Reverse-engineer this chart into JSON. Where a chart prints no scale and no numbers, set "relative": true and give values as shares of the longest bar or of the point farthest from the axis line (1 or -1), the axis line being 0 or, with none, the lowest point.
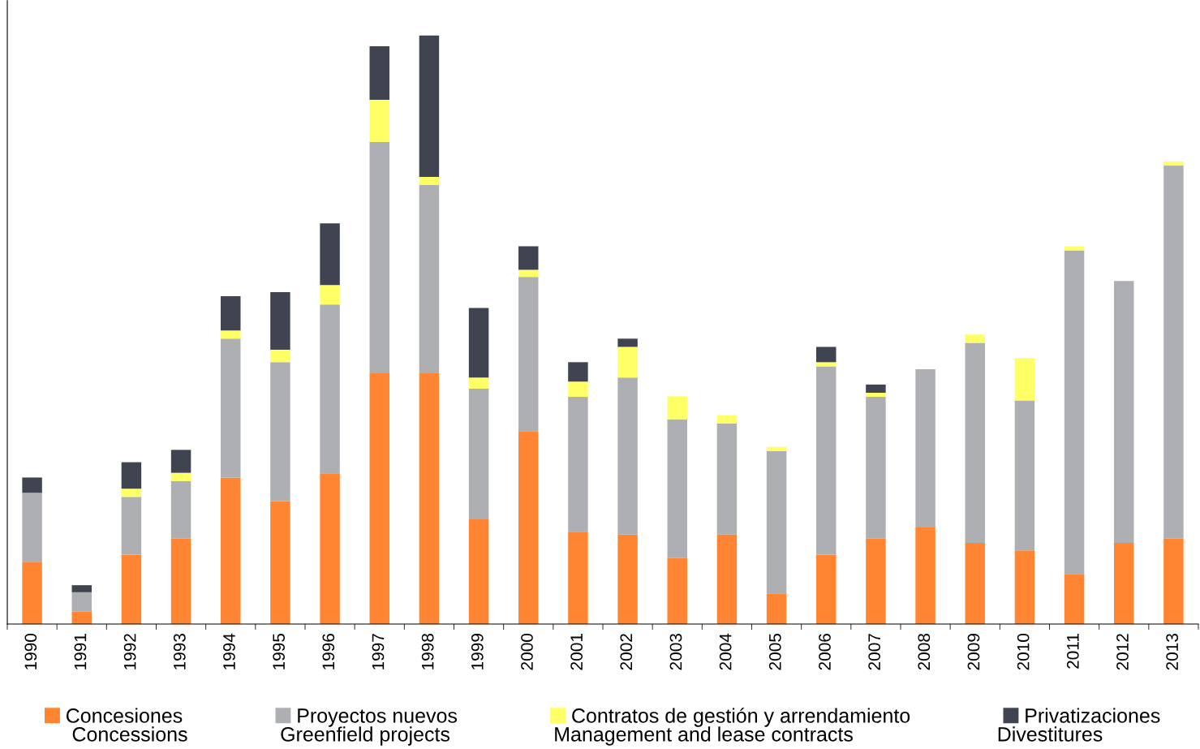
{
  "chart_data": {
    "type": "bar",
    "stacked": true,
    "relative": true,
    "legend": "bottom",
    "grid": false,
    "categories": [
      "1990",
      "1991",
      "1992",
      "1993",
      "1994",
      "1995",
      "1996",
      "1997",
      "1998",
      "1999",
      "2000",
      "2001",
      "2002",
      "2003",
      "2004",
      "2005",
      "2006",
      "2007",
      "2008",
      "2009",
      "2010",
      "2011",
      "2012",
      "2013"
    ],
    "series": [
      {
        "name": "Concesiones",
        "color": "#ff8533",
        "values": [
          0.106,
          0.021,
          0.118,
          0.145,
          0.249,
          0.209,
          0.256,
          0.426,
          0.426,
          0.178,
          0.328,
          0.157,
          0.152,
          0.112,
          0.152,
          0.052,
          0.118,
          0.145,
          0.164,
          0.138,
          0.125,
          0.085,
          0.138,
          0.145
        ]
      },
      {
        "name": "Proyectos nuevos",
        "color": "#adafb2",
        "values": [
          0.117,
          0.033,
          0.098,
          0.098,
          0.236,
          0.236,
          0.287,
          0.393,
          0.32,
          0.222,
          0.262,
          0.229,
          0.267,
          0.236,
          0.189,
          0.242,
          0.32,
          0.241,
          0.269,
          0.34,
          0.255,
          0.55,
          0.445,
          0.634
        ]
      },
      {
        "name": "Contratos de gestión y arrendamiento",
        "color": "#ffff66",
        "values": [
          0,
          0,
          0.014,
          0.014,
          0.014,
          0.021,
          0.033,
          0.072,
          0.014,
          0.019,
          0.012,
          0.026,
          0.052,
          0.039,
          0.014,
          0.007,
          0.007,
          0.007,
          0,
          0.014,
          0.072,
          0.007,
          0,
          0.007
        ]
      },
      {
        "name": "Privatizaciones",
        "color": "#3f4450",
        "values": [
          0.026,
          0.012,
          0.045,
          0.039,
          0.058,
          0.098,
          0.105,
          0.091,
          0.24,
          0.118,
          0.04,
          0.033,
          0.014,
          0,
          0,
          0,
          0.026,
          0.014,
          0,
          0,
          0,
          0,
          0,
          0
        ]
      }
    ],
    "annotations": [
      "Concessions",
      "Greenfield projects",
      "Management and lease contracts",
      "Divestitures"
    ]
  }
}
